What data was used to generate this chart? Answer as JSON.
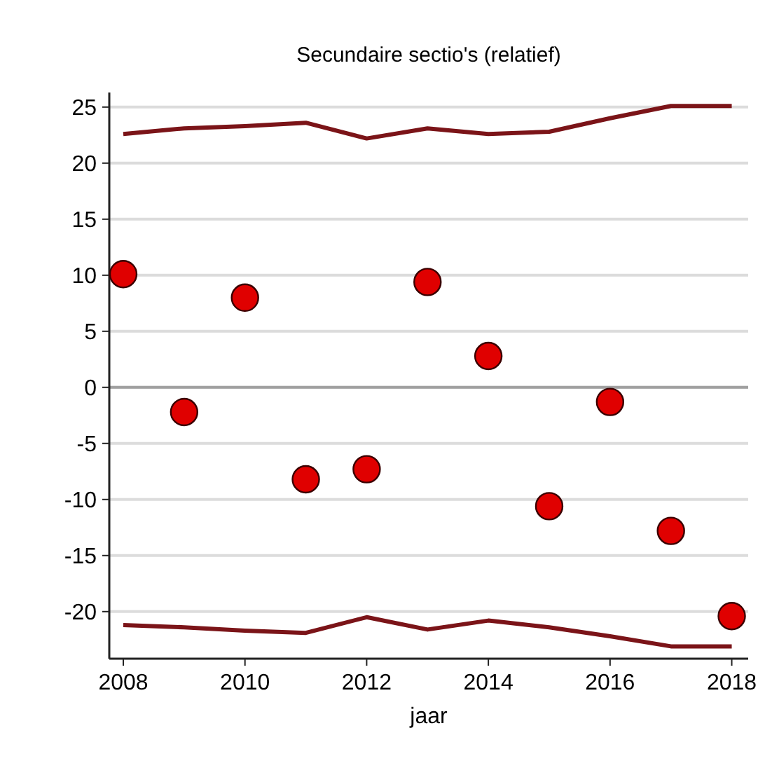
{
  "chart_data": {
    "type": "scatter",
    "title": "Secundaire sectio's (relatief)",
    "xlabel": "jaar",
    "x": [
      2008,
      2009,
      2010,
      2011,
      2012,
      2013,
      2014,
      2015,
      2016,
      2017,
      2018
    ],
    "series": [
      {
        "color": "#e00000",
        "marker": "circle",
        "values": [
          10.1,
          -2.2,
          8.0,
          -8.2,
          -7.3,
          9.4,
          2.8,
          -10.6,
          -1.3,
          -12.8,
          -20.4
        ]
      },
      {
        "type": "line",
        "color": "#7b1418",
        "marker": "none",
        "values": [
          22.6,
          23.1,
          23.3,
          23.6,
          22.2,
          23.1,
          22.6,
          22.8,
          24.0,
          25.1,
          25.1
        ]
      },
      {
        "type": "line",
        "color": "#7b1418",
        "marker": "none",
        "values": [
          -21.2,
          -21.4,
          -21.7,
          -21.9,
          -20.5,
          -21.6,
          -20.8,
          -21.4,
          -22.2,
          -23.1,
          -23.1
        ]
      }
    ],
    "xlim": [
      2007.77,
      2018.27
    ],
    "xticks": [
      2008,
      2010,
      2012,
      2014,
      2016,
      2018
    ],
    "ylim": [
      -24.2,
      26.3
    ],
    "yticks": [
      -20,
      -15,
      -10,
      -5,
      0,
      5,
      10,
      15,
      20,
      25
    ],
    "grid": "y",
    "ref_lines": [
      {
        "axis": "y",
        "value": 0,
        "color": "#a0a0a0"
      }
    ]
  }
}
